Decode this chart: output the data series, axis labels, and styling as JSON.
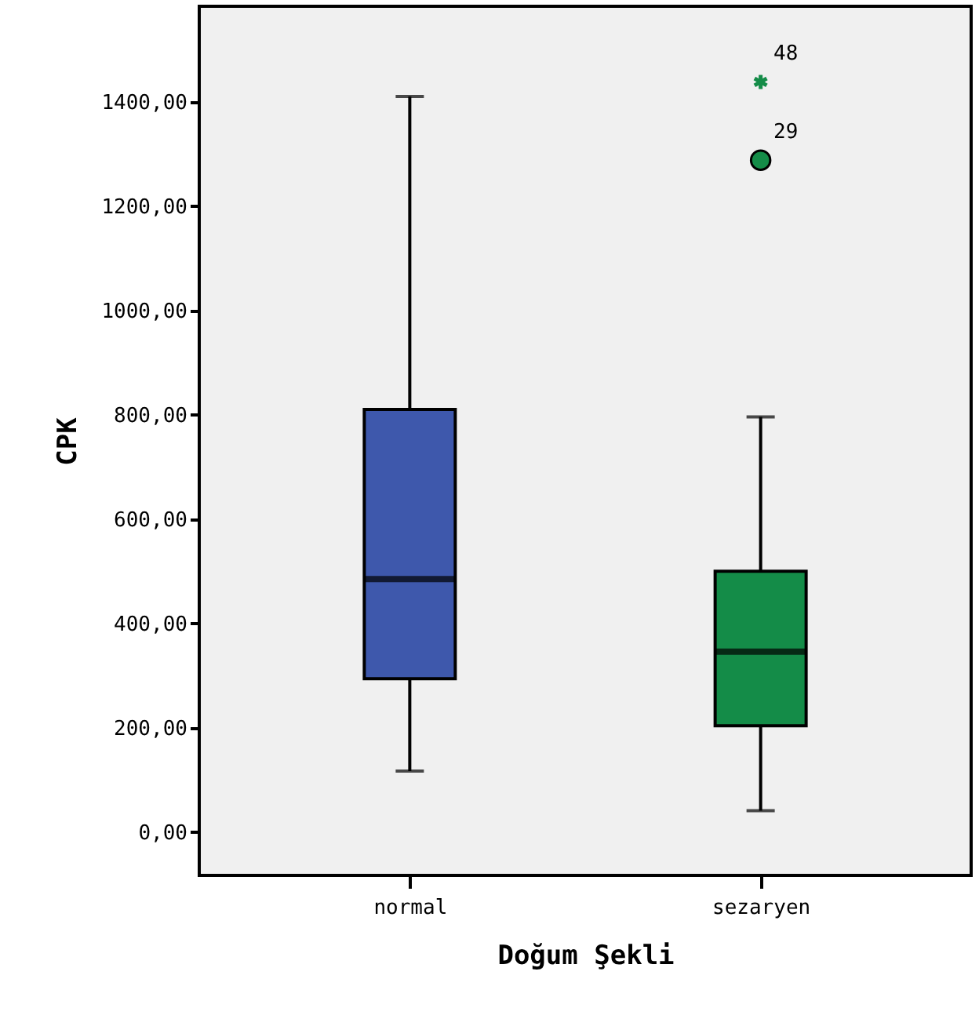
{
  "chart_data": {
    "type": "box",
    "xlabel": "Doğum Şekli",
    "ylabel": "CPK",
    "categories": [
      "normal",
      "sezaryen"
    ],
    "colors": [
      "#3e58ac",
      "#148c48"
    ],
    "boxes": [
      {
        "low": 117,
        "q1": 294,
        "median": 485,
        "q3": 810,
        "high": 1410
      },
      {
        "low": 41,
        "q1": 204,
        "median": 346,
        "q3": 500,
        "high": 796,
        "outliers": [
          1288,
          1438
        ]
      }
    ],
    "annotations": [
      "29",
      "48"
    ],
    "ylim": [
      -83,
      1583
    ],
    "yticks": [
      {
        "value": 0,
        "label": "0,00"
      },
      {
        "value": 200,
        "label": "200,00"
      },
      {
        "value": 400,
        "label": "400,00"
      },
      {
        "value": 600,
        "label": "600,00"
      },
      {
        "value": 800,
        "label": "800,00"
      },
      {
        "value": 1000,
        "label": "1000,00"
      },
      {
        "value": 1200,
        "label": "1200,00"
      },
      {
        "value": 1400,
        "label": "1400,00"
      }
    ],
    "grid": false,
    "legend": false
  }
}
